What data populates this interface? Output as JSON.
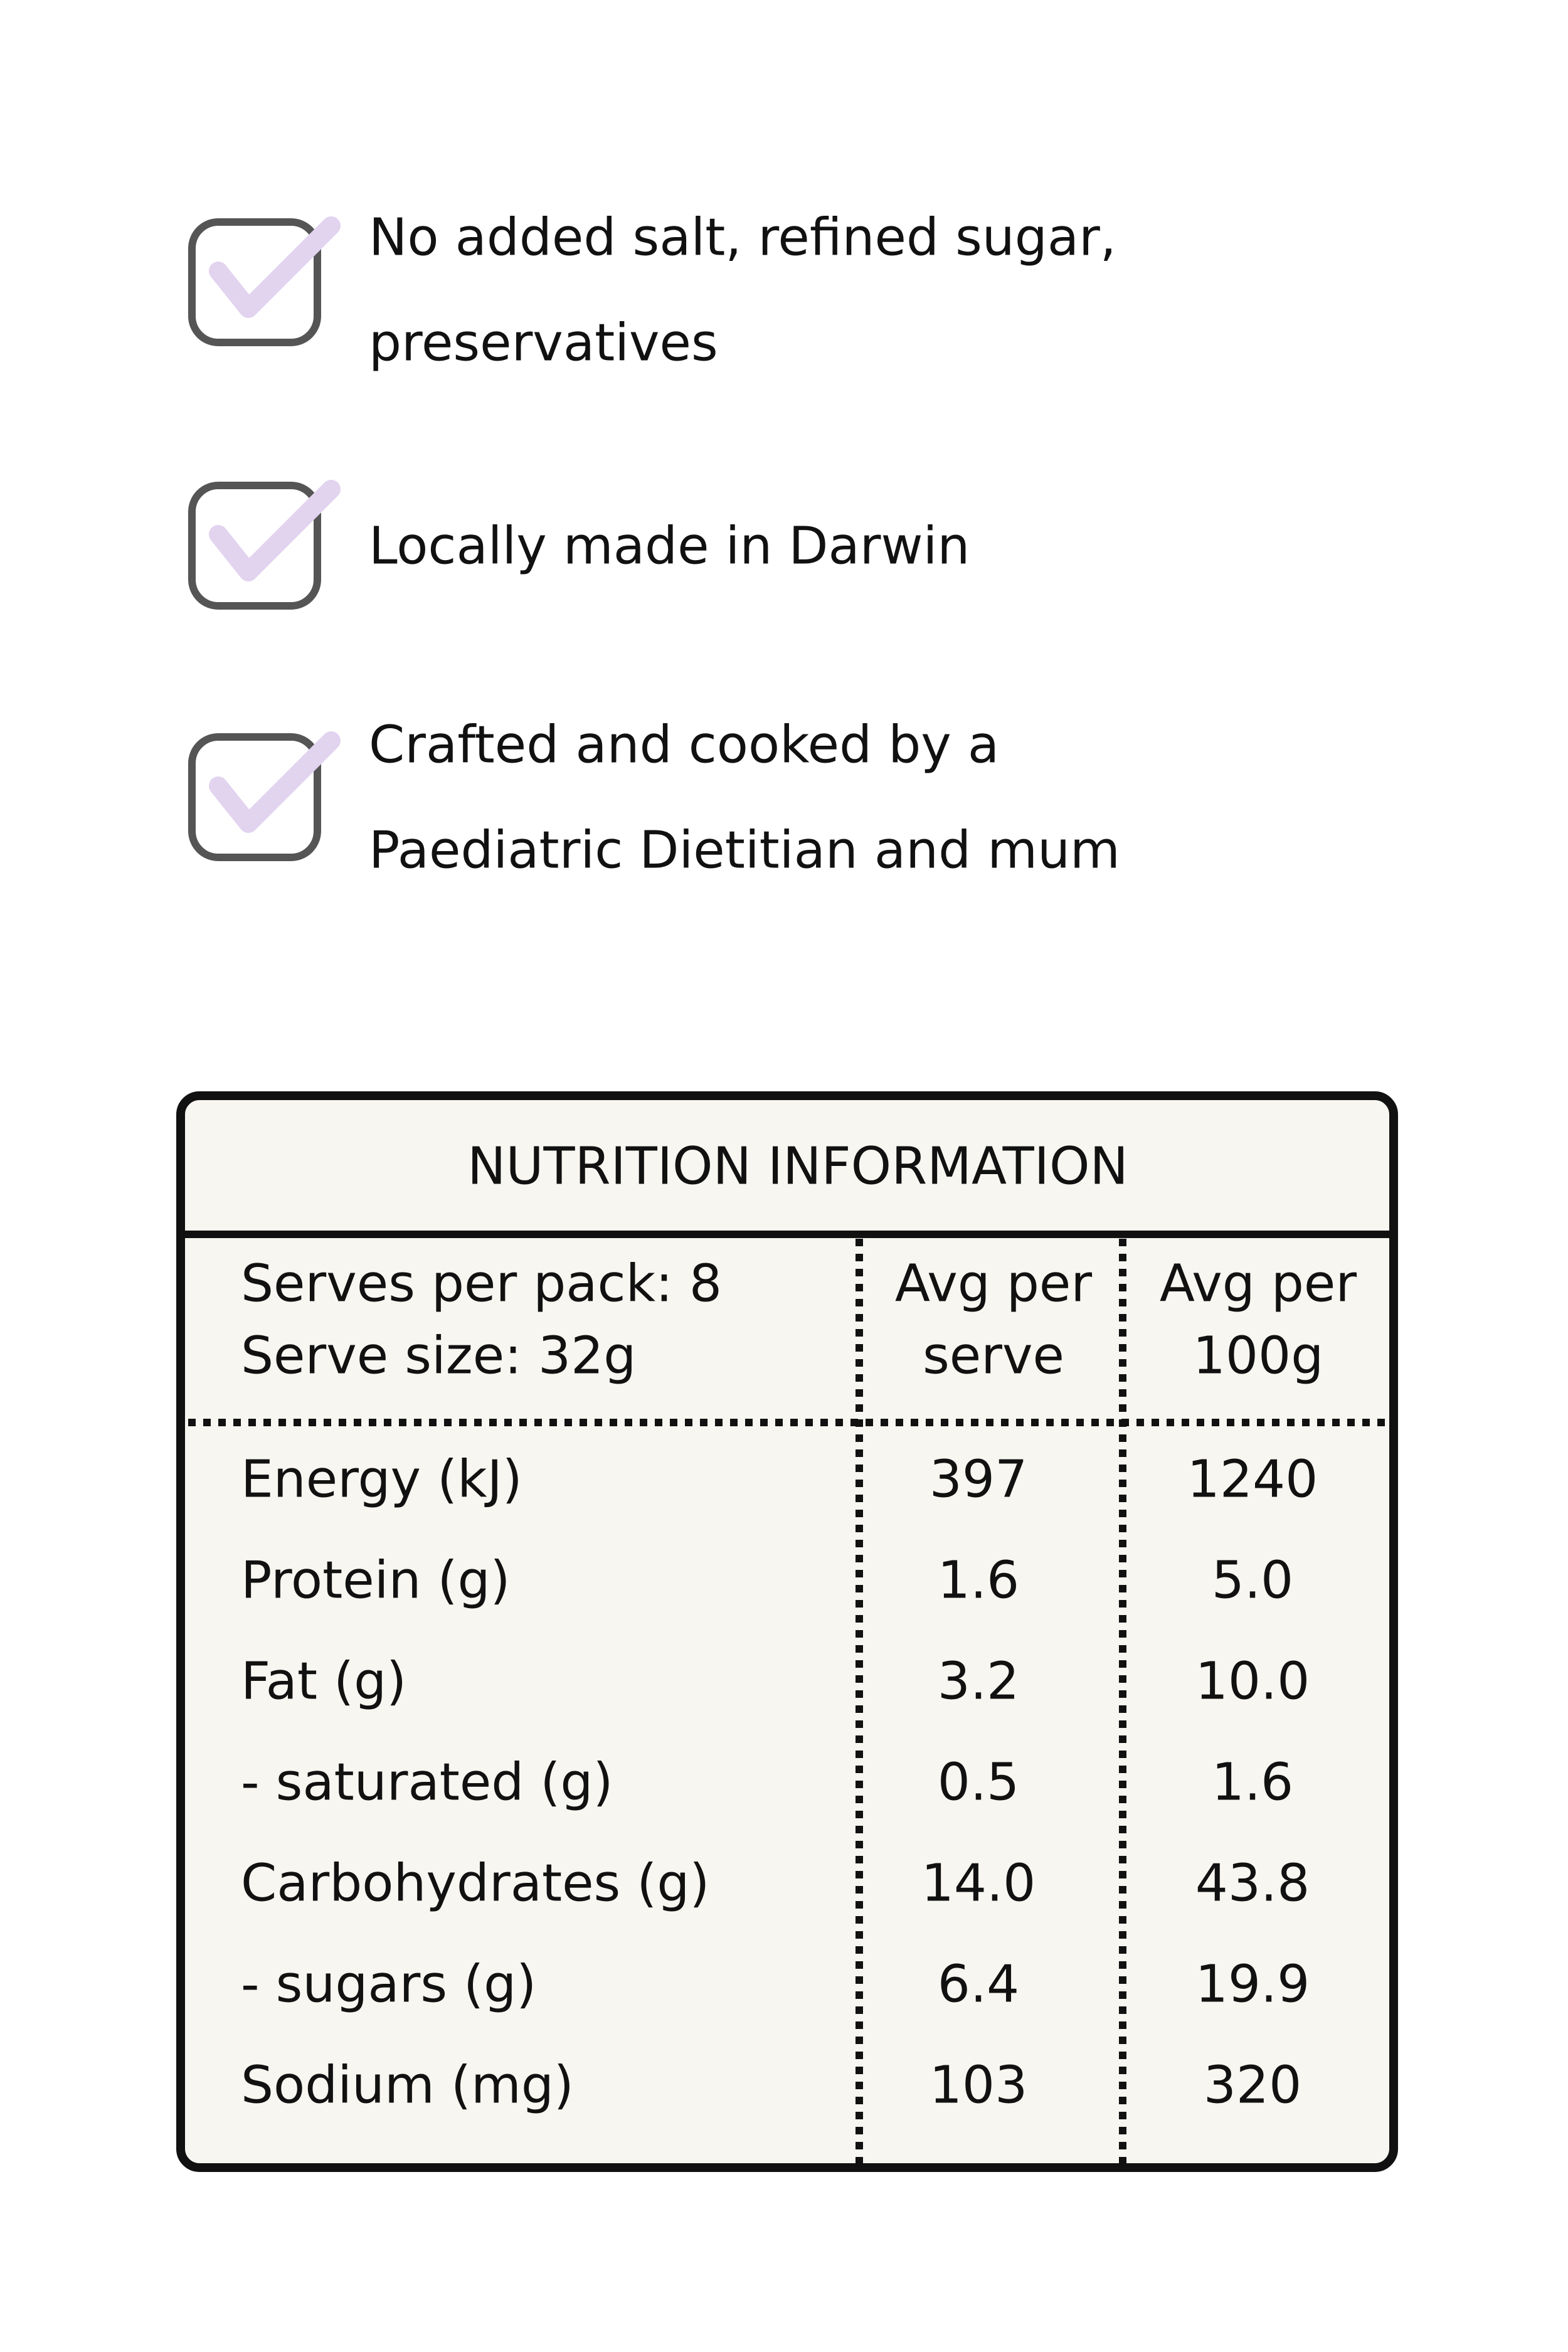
{
  "features": [
    {
      "lines": [
        "No added salt, refined sugar,",
        "preservatives"
      ]
    },
    {
      "lines": [
        "Locally made in Darwin"
      ]
    },
    {
      "lines": [
        "Crafted and cooked by a",
        "Paediatric Dietitian and mum"
      ]
    }
  ],
  "nutrition_table": {
    "title": "NUTRITION INFORMATION",
    "header": {
      "serving": [
        "Serves per pack: 8",
        "Serve size: 32g"
      ],
      "columns": [
        [
          "Avg per",
          "serve"
        ],
        [
          "Avg per",
          "100g"
        ]
      ]
    },
    "rows": [
      [
        "Energy (kJ)",
        "397",
        "1240"
      ],
      [
        "Protein (g)",
        "1.6",
        "5.0"
      ],
      [
        "Fat (g)",
        "3.2",
        "10.0"
      ],
      [
        "- saturated (g)",
        "0.5",
        "1.6"
      ],
      [
        "Carbohydrates (g)",
        "14.0",
        "43.8"
      ],
      [
        "- sugars (g)",
        "6.4",
        "19.9"
      ],
      [
        "Sodium (mg)",
        "103",
        "320"
      ]
    ]
  }
}
